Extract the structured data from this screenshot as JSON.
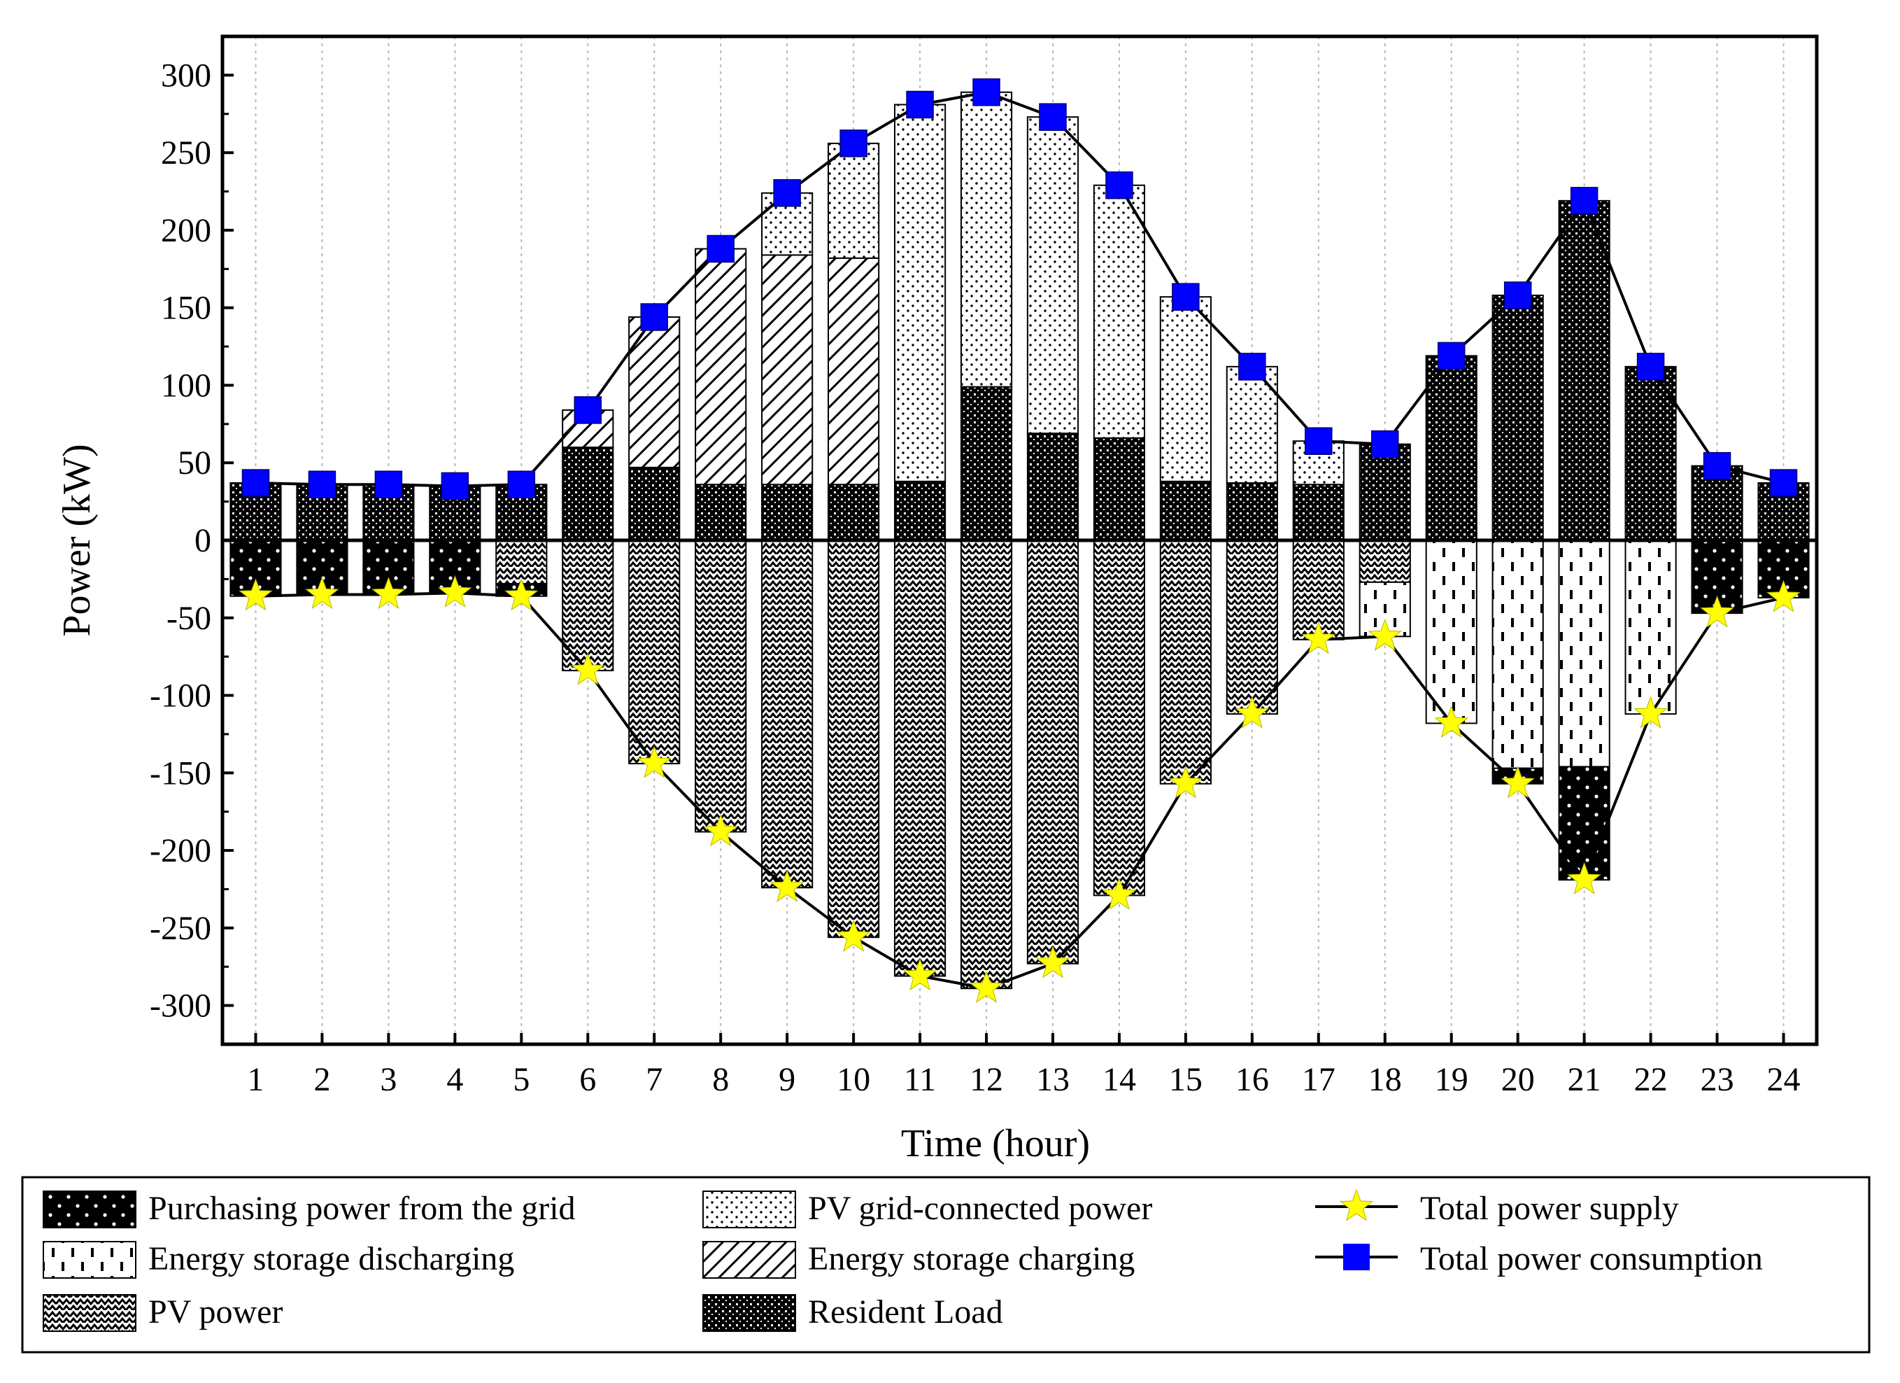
{
  "chart_data": {
    "type": "bar",
    "title": "",
    "xlabel": "Time (hour)",
    "ylabel": "Power (kW)",
    "ylim": [
      -325,
      325
    ],
    "yticks": [
      -300,
      -250,
      -200,
      -150,
      -100,
      -50,
      0,
      50,
      100,
      150,
      200,
      250,
      300
    ],
    "categories": [
      "1",
      "2",
      "3",
      "4",
      "5",
      "6",
      "7",
      "8",
      "9",
      "10",
      "11",
      "12",
      "13",
      "14",
      "15",
      "16",
      "17",
      "18",
      "19",
      "20",
      "21",
      "22",
      "23",
      "24"
    ],
    "stacking": "positive stack: Resident Load, Energy storage charging, PV grid-connected power; negative stack: PV power, Energy storage discharging, Purchasing power from the grid",
    "series": [
      {
        "name": "Purchasing power from the grid",
        "kind": "bar",
        "pattern": "grid",
        "values": [
          -36,
          -35,
          -35,
          -34,
          -8,
          0,
          0,
          0,
          0,
          0,
          0,
          0,
          0,
          0,
          0,
          0,
          0,
          0,
          0,
          -10,
          -73,
          0,
          -47,
          -37
        ]
      },
      {
        "name": "Energy storage discharging",
        "kind": "bar",
        "pattern": "discharge",
        "values": [
          0,
          0,
          0,
          0,
          0,
          0,
          0,
          0,
          0,
          0,
          0,
          0,
          0,
          0,
          0,
          0,
          0,
          -35,
          -118,
          -147,
          -146,
          -112,
          0,
          0
        ]
      },
      {
        "name": "PV power",
        "kind": "bar",
        "pattern": "pv",
        "values": [
          0,
          0,
          0,
          0,
          -28,
          -84,
          -144,
          -188,
          -224,
          -256,
          -281,
          -289,
          -273,
          -229,
          -157,
          -112,
          -64,
          -27,
          0,
          0,
          0,
          0,
          0,
          0
        ]
      },
      {
        "name": "PV grid-connected power",
        "kind": "bar",
        "pattern": "pvgrid",
        "values": [
          0,
          0,
          0,
          0,
          0,
          0,
          0,
          0,
          40,
          74,
          243,
          190,
          204,
          163,
          119,
          75,
          28,
          0,
          0,
          0,
          0,
          0,
          0,
          0
        ]
      },
      {
        "name": "Energy storage charging",
        "kind": "bar",
        "pattern": "charge",
        "values": [
          0,
          0,
          0,
          0,
          0,
          24,
          97,
          152,
          148,
          146,
          0,
          0,
          0,
          0,
          0,
          0,
          0,
          0,
          0,
          0,
          0,
          0,
          0,
          0
        ]
      },
      {
        "name": "Resident Load",
        "kind": "bar",
        "pattern": "resident",
        "values": [
          37,
          36,
          36,
          35,
          36,
          60,
          47,
          36,
          36,
          36,
          38,
          99,
          69,
          66,
          38,
          37,
          36,
          62,
          119,
          158,
          219,
          112,
          48,
          37
        ]
      },
      {
        "name": "Total power supply",
        "kind": "line",
        "marker": "star",
        "color": "#FFFF00",
        "values": [
          -36,
          -35,
          -35,
          -34,
          -36,
          -84,
          -144,
          -188,
          -224,
          -256,
          -281,
          -289,
          -273,
          -229,
          -157,
          -112,
          -64,
          -62,
          -118,
          -157,
          -219,
          -112,
          -47,
          -37
        ]
      },
      {
        "name": "Total power consumption",
        "kind": "line",
        "marker": "square",
        "color": "#0000FF",
        "values": [
          37,
          36,
          36,
          35,
          36,
          84,
          144,
          188,
          224,
          256,
          281,
          289,
          273,
          229,
          157,
          112,
          64,
          62,
          119,
          158,
          219,
          112,
          48,
          37
        ]
      }
    ],
    "legend": [
      [
        "Purchasing power from the grid",
        "PV grid-connected power",
        "Total power supply"
      ],
      [
        "Energy storage discharging",
        "Energy storage charging",
        "Total power consumption"
      ],
      [
        "PV power",
        "Resident Load"
      ]
    ],
    "legend_position": "below"
  }
}
